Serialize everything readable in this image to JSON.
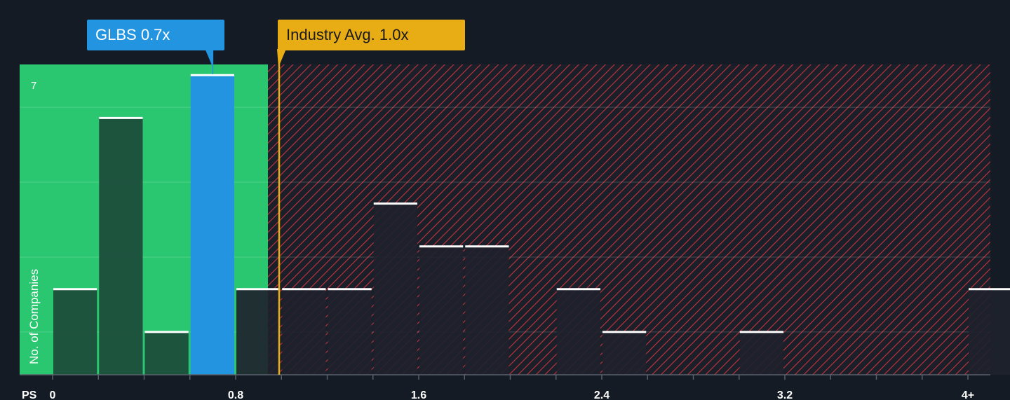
{
  "chart_data": {
    "type": "bar",
    "xlabel": "PS",
    "ylabel": "No. of Companies",
    "x_ticks": [
      "0",
      "0.8",
      "1.6",
      "2.4",
      "3.2",
      "4+"
    ],
    "y_tick_labels": [
      "7"
    ],
    "ylim": [
      0,
      7.25
    ],
    "bin_width": 0.2,
    "bins": [
      {
        "x0": 0.0,
        "count": 2
      },
      {
        "x0": 0.2,
        "count": 6
      },
      {
        "x0": 0.4,
        "count": 1
      },
      {
        "x0": 0.6,
        "count": 7
      },
      {
        "x0": 0.8,
        "count": 2
      },
      {
        "x0": 1.0,
        "count": 2
      },
      {
        "x0": 1.2,
        "count": 2
      },
      {
        "x0": 1.4,
        "count": 4
      },
      {
        "x0": 1.6,
        "count": 3
      },
      {
        "x0": 1.8,
        "count": 3
      },
      {
        "x0": 2.2,
        "count": 2
      },
      {
        "x0": 2.4,
        "count": 1
      },
      {
        "x0": 3.0,
        "count": 1
      },
      {
        "x0": 4.0,
        "count": 2
      }
    ],
    "highlight_bin_x0": 0.6,
    "fair_region_end": 0.94,
    "company": {
      "label": "GLBS",
      "value": 0.7,
      "value_text": "0.7x"
    },
    "industry_avg": {
      "label": "Industry Avg.",
      "value": 0.99,
      "value_text": "1.0x"
    },
    "colors": {
      "background": "#151b24",
      "fair_zone": "#2ac670",
      "bar_in_fair": "#1c4a3a",
      "bar_in_hatch": "#1e222c",
      "company_bar": "#2394e0",
      "hatch": "#d9343f",
      "industry_line": "#e8ad15"
    }
  }
}
